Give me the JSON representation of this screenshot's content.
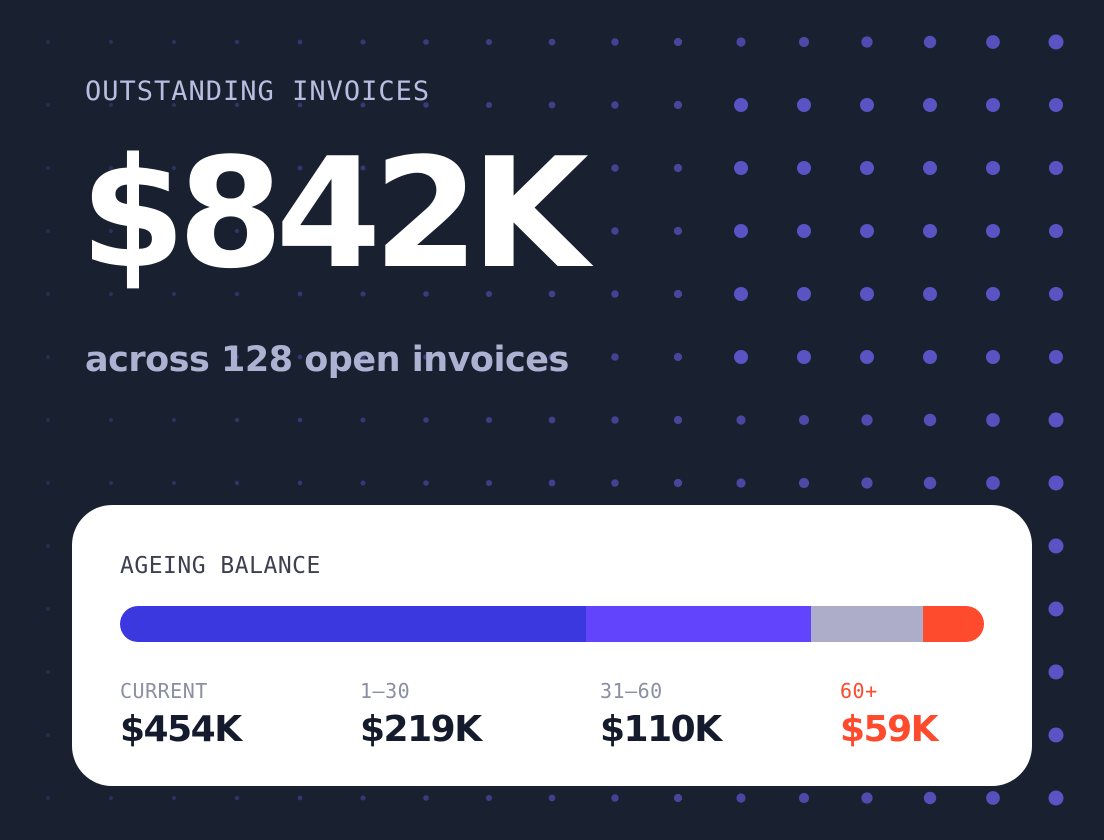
{
  "header": {
    "label": "OUTSTANDING INVOICES",
    "amount": "$842K",
    "subtitle": "across 128 open invoices"
  },
  "ageing": {
    "title": "AGEING BALANCE",
    "buckets": [
      {
        "label": "CURRENT",
        "value": "$454K",
        "amount_k": 454,
        "color": "#3a38de"
      },
      {
        "label": "1–30",
        "value": "$219K",
        "amount_k": 219,
        "color": "#6244fc"
      },
      {
        "label": "31–60",
        "value": "$110K",
        "amount_k": 110,
        "color": "#aeadc9"
      },
      {
        "label": "60+",
        "value": "$59K",
        "amount_k": 59,
        "color": "#fe4a2d"
      }
    ]
  },
  "theme": {
    "background": "#19202f",
    "dot_accent": "#5a53c4",
    "overdue_text": "#fe4a2d"
  }
}
